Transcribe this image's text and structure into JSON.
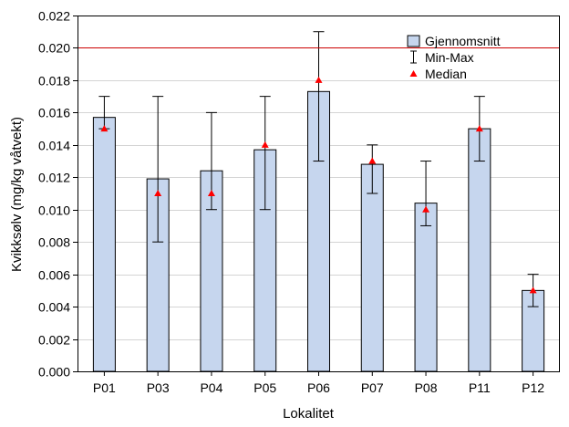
{
  "chart_data": {
    "type": "bar",
    "xlabel": "Lokalitet",
    "ylabel": "Kvikksølv (mg/kg våtvekt)",
    "ylim": [
      0,
      0.022
    ],
    "yticks": [
      "0.000",
      "0.002",
      "0.004",
      "0.006",
      "0.008",
      "0.010",
      "0.012",
      "0.014",
      "0.016",
      "0.018",
      "0.020",
      "0.022"
    ],
    "categories": [
      "P01",
      "P03",
      "P04",
      "P05",
      "P06",
      "P07",
      "P08",
      "P11",
      "P12"
    ],
    "series": [
      {
        "name": "Gjennomsnitt",
        "values": [
          0.0157,
          0.0119,
          0.0124,
          0.0137,
          0.0173,
          0.0128,
          0.0104,
          0.015,
          0.005
        ]
      }
    ],
    "min": [
      0.015,
      0.008,
      0.01,
      0.01,
      0.013,
      0.011,
      0.009,
      0.013,
      0.004
    ],
    "max": [
      0.017,
      0.017,
      0.016,
      0.017,
      0.021,
      0.014,
      0.013,
      0.017,
      0.006
    ],
    "median": [
      0.015,
      0.011,
      0.011,
      0.014,
      0.018,
      0.013,
      0.01,
      0.015,
      0.005
    ],
    "reference_line": 0.02,
    "grid": true,
    "legend": {
      "position": "top-right",
      "items": [
        "Gjennomsnitt",
        "Min-Max",
        "Median"
      ]
    },
    "colors": {
      "bar_fill": "#c6d6ee",
      "bar_stroke": "#000000",
      "median_marker": "#ff0000",
      "reference_line": "#cc0000",
      "grid": "#d4d4d4"
    }
  }
}
